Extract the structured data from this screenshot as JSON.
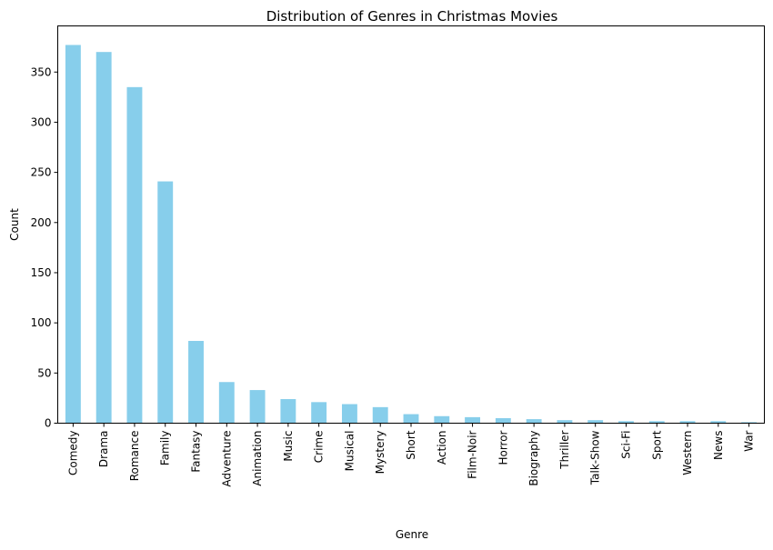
{
  "chart_data": {
    "type": "bar",
    "title": "Distribution of Genres in Christmas Movies",
    "xlabel": "Genre",
    "ylabel": "Count",
    "categories": [
      "Comedy",
      "Drama",
      "Romance",
      "Family",
      "Fantasy",
      "Adventure",
      "Animation",
      "Music",
      "Crime",
      "Musical",
      "Mystery",
      "Short",
      "Action",
      "Film-Noir",
      "Horror",
      "Biography",
      "Thriller",
      "Talk-Show",
      "Sci-Fi",
      "Sport",
      "Western",
      "News",
      "War"
    ],
    "values": [
      377,
      370,
      335,
      241,
      82,
      41,
      33,
      24,
      21,
      19,
      16,
      9,
      7,
      6,
      5,
      4,
      3,
      3,
      2,
      2,
      2,
      2,
      1
    ],
    "yticks": [
      0,
      50,
      100,
      150,
      200,
      250,
      300,
      350
    ],
    "ylim": [
      0,
      396
    ],
    "bar_color": "#87ceeb",
    "grid": false,
    "legend": "none"
  }
}
